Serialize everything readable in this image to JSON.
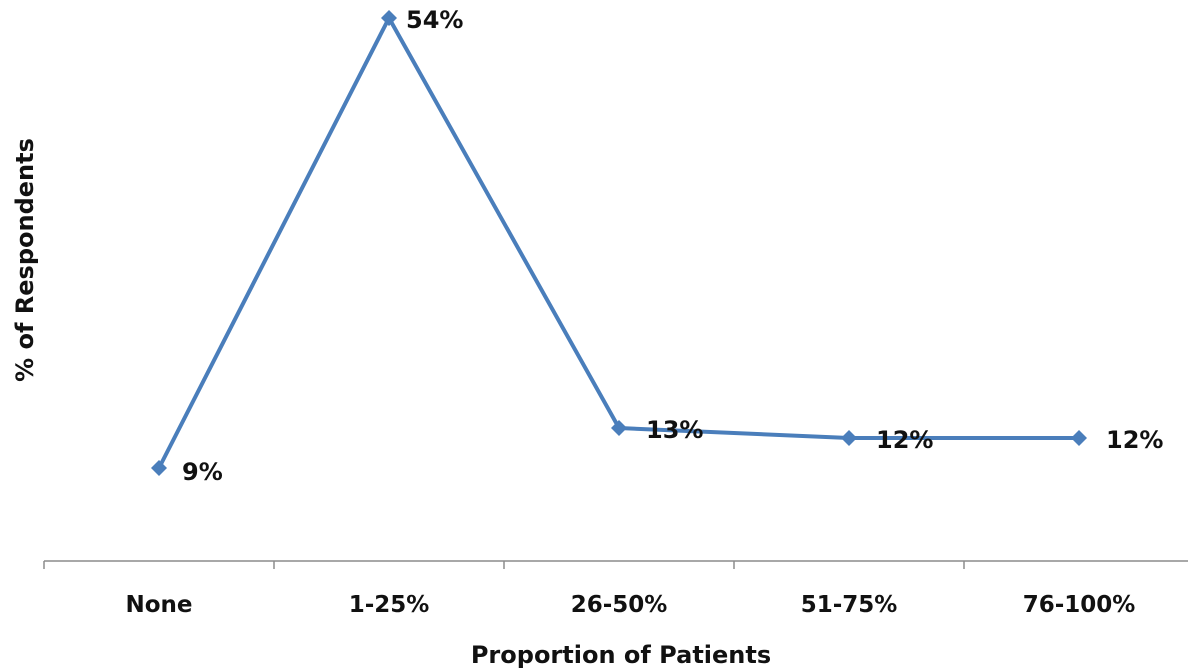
{
  "chart_data": {
    "type": "line",
    "categories": [
      "None",
      "1-25%",
      "26-50%",
      "51-75%",
      "76-100%"
    ],
    "series": [
      {
        "values": [
          9,
          54,
          13,
          12,
          12
        ],
        "data_labels": [
          "9%",
          "54%",
          "13%",
          "12%",
          "12%"
        ],
        "color": "#4a7ebb",
        "marker": "diamond"
      }
    ],
    "xlabel": "Proportion of Patients",
    "ylabel": "% of Respondents",
    "ylim": [
      -1,
      55
    ],
    "grid": false,
    "legend": "none"
  }
}
